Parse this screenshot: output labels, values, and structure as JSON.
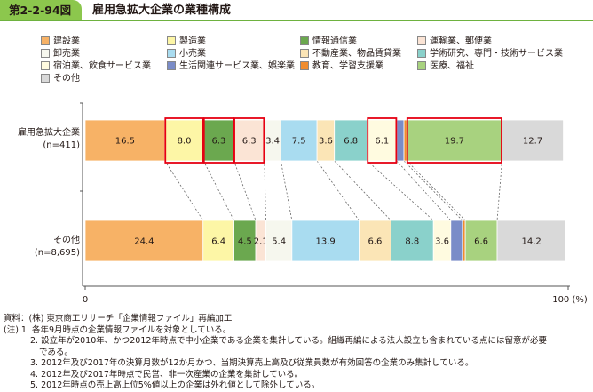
{
  "header": {
    "figure_no": "第2-2-94図",
    "title": "雇用急拡大企業の業種構成"
  },
  "legend": [
    {
      "label": "建設業",
      "color": "#f7b266"
    },
    {
      "label": "製造業",
      "color": "#fdf6a6"
    },
    {
      "label": "情報通信業",
      "color": "#6ba84f"
    },
    {
      "label": "運輸業、郵便業",
      "color": "#fbe4d5"
    },
    {
      "label": "卸売業",
      "color": "#f6f7ee"
    },
    {
      "label": "小売業",
      "color": "#a9dcf0"
    },
    {
      "label": "不動産業、物品賃貸業",
      "color": "#fbe5b6"
    },
    {
      "label": "学術研究、専門・技術サービス業",
      "color": "#8ad1cb"
    },
    {
      "label": "宿泊業、飲食サービス業",
      "color": "#fffbe0"
    },
    {
      "label": "生活関連サービス業、娯楽業",
      "color": "#7a8cc8"
    },
    {
      "label": "教育、学習支援業",
      "color": "#ef8c2e"
    },
    {
      "label": "医療、福祉",
      "color": "#a8d27f"
    },
    {
      "label": "その他",
      "color": "#d9d9d9"
    }
  ],
  "chart_data": {
    "type": "bar",
    "orientation": "horizontal-stacked-100",
    "categories": [
      "雇用急拡大企業\n(n=411)",
      "その他\n(n=8,695)"
    ],
    "category_lines": [
      [
        "雇用急拡大企業",
        "(n=411)"
      ],
      [
        "その他",
        "(n=8,695)"
      ]
    ],
    "series": [
      {
        "name": "建設業",
        "values": [
          16.5,
          24.4
        ],
        "labels": [
          "16.5",
          "24.4"
        ]
      },
      {
        "name": "製造業",
        "values": [
          8.0,
          6.4
        ],
        "labels": [
          "8.0",
          "6.4"
        ]
      },
      {
        "name": "情報通信業",
        "values": [
          6.3,
          4.5
        ],
        "labels": [
          "6.3",
          "4.5"
        ]
      },
      {
        "name": "運輸業、郵便業",
        "values": [
          6.3,
          2.1
        ],
        "labels": [
          "6.3",
          "2.1"
        ]
      },
      {
        "name": "卸売業",
        "values": [
          3.4,
          5.4
        ],
        "labels": [
          "3.4",
          "5.4"
        ]
      },
      {
        "name": "小売業",
        "values": [
          7.5,
          13.9
        ],
        "labels": [
          "7.5",
          "13.9"
        ]
      },
      {
        "name": "不動産業、物品賃貸業",
        "values": [
          3.6,
          6.6
        ],
        "labels": [
          "3.6",
          "6.6"
        ]
      },
      {
        "name": "学術研究、専門・技術サービス業",
        "values": [
          6.8,
          8.8
        ],
        "labels": [
          "6.8",
          "8.8"
        ]
      },
      {
        "name": "宿泊業、飲食サービス業",
        "values": [
          6.1,
          3.6
        ],
        "labels": [
          "6.1",
          "3.6"
        ]
      },
      {
        "name": "生活関連サービス業、娯楽業",
        "values": [
          1.5,
          2.4
        ],
        "labels": [
          "",
          ""
        ]
      },
      {
        "name": "教育、学習支援業",
        "values": [
          0.6,
          0.6
        ],
        "labels": [
          "",
          ""
        ]
      },
      {
        "name": "医療、福祉",
        "values": [
          19.7,
          6.6
        ],
        "labels": [
          "19.7",
          "6.6"
        ]
      },
      {
        "name": "その他",
        "values": [
          12.7,
          14.2
        ],
        "labels": [
          "12.7",
          "14.2"
        ]
      }
    ],
    "highlighted": [
      [
        1,
        2,
        3,
        8,
        11
      ],
      []
    ],
    "xlim": [
      0,
      100
    ],
    "x_tick_labels": [
      "0",
      "100 (%)"
    ]
  },
  "footnotes": [
    "資料：(株) 東京商工リサーチ「企業情報ファイル」再編加工",
    "(注) 1. 各年9月時点の企業情報ファイルを対象としている。",
    "2. 設立年が2010年、かつ2012年時点で中小企業である企業を集計している。組織再編による法人設立も含まれている点には留意が必要",
    "である。",
    "3. 2012年及び2017年の決算月数が12か月かつ、当期決算売上高及び従業員数が有効回答の企業のみ集計している。",
    "4. 2012年及び2017年時点で民営、非一次産業の企業を集計している。",
    "5. 2012年時点の売上高上位5%値以上の企業は外れ値として除外している。"
  ]
}
